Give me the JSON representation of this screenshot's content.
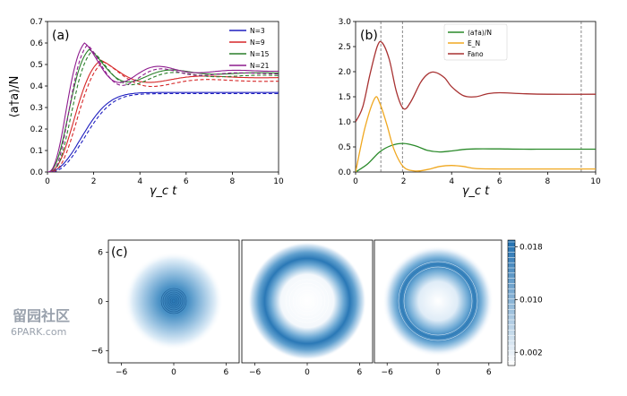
{
  "chart_data": [
    {
      "panel": "(a)",
      "type": "line",
      "xlabel": "γ_c t",
      "ylabel": "⟨a†a⟩/N",
      "xlim": [
        0,
        10
      ],
      "ylim": [
        0,
        0.7
      ],
      "xticks": [
        "0",
        "2",
        "4",
        "6",
        "8",
        "10"
      ],
      "yticks": [
        "0.0",
        "0.1",
        "0.2",
        "0.3",
        "0.4",
        "0.5",
        "0.6",
        "0.7"
      ],
      "legend_position": "top-right",
      "series": [
        {
          "name": "N=3",
          "color": "#1f1fbf",
          "peak_t": 4.2,
          "peak_v": 0.37,
          "final": 0.37,
          "dashed_final": 0.37
        },
        {
          "name": "N=9",
          "color": "#d62728",
          "peak_t": 2.3,
          "peak_v": 0.52,
          "final": 0.44,
          "dashed_final": 0.43
        },
        {
          "name": "N=15",
          "color": "#2a7f2a",
          "peak_t": 1.8,
          "peak_v": 0.57,
          "final": 0.46,
          "dashed_final": 0.455
        },
        {
          "name": "N=21",
          "color": "#8e1c8e",
          "peak_t": 1.6,
          "peak_v": 0.6,
          "final": 0.47,
          "dashed_final": 0.465
        }
      ]
    },
    {
      "panel": "(b)",
      "type": "line",
      "xlabel": "γ_c t",
      "xlim": [
        0,
        10
      ],
      "ylim": [
        0,
        3.0
      ],
      "xticks": [
        "0",
        "2",
        "4",
        "6",
        "8",
        "10"
      ],
      "yticks": [
        "0.0",
        "0.5",
        "1.0",
        "1.5",
        "2.0",
        "2.5",
        "3.0"
      ],
      "legend_position": "top-right",
      "vlines": [
        1.05,
        1.95,
        9.4
      ],
      "series": [
        {
          "name": "⟨a†a⟩/N",
          "color": "#2a8a2a",
          "x": [
            0,
            0.5,
            1.0,
            1.5,
            2.0,
            2.5,
            3.0,
            3.5,
            4.0,
            4.5,
            5,
            6,
            7,
            8,
            10
          ],
          "y": [
            0,
            0.16,
            0.4,
            0.53,
            0.57,
            0.52,
            0.43,
            0.4,
            0.42,
            0.45,
            0.46,
            0.46,
            0.455,
            0.455,
            0.455
          ]
        },
        {
          "name": "E_N",
          "color": "#f0a820",
          "x": [
            0,
            0.4,
            0.8,
            1.0,
            1.3,
            1.6,
            2.0,
            2.5,
            3.0,
            3.5,
            4.0,
            4.5,
            5,
            6,
            7,
            8,
            10
          ],
          "y": [
            0,
            0.9,
            1.47,
            1.38,
            0.95,
            0.45,
            0.1,
            0.02,
            0.05,
            0.11,
            0.13,
            0.11,
            0.07,
            0.06,
            0.06,
            0.06,
            0.06
          ]
        },
        {
          "name": "Fano",
          "color": "#a83232",
          "x": [
            0,
            0.3,
            0.6,
            0.9,
            1.1,
            1.4,
            1.7,
            2.0,
            2.3,
            2.7,
            3.0,
            3.3,
            3.7,
            4.0,
            4.5,
            5,
            5.5,
            6,
            7,
            8,
            10
          ],
          "y": [
            1.0,
            1.3,
            1.95,
            2.5,
            2.58,
            2.25,
            1.6,
            1.26,
            1.4,
            1.78,
            1.95,
            1.99,
            1.88,
            1.7,
            1.52,
            1.5,
            1.56,
            1.58,
            1.56,
            1.55,
            1.55
          ]
        }
      ]
    },
    {
      "panel": "(c)",
      "type": "heatmap",
      "xlim": [
        -7.5,
        7.5
      ],
      "ylim": [
        -7.5,
        7.5
      ],
      "xticks": [
        "−6",
        "0",
        "6"
      ],
      "yticks": [
        "6",
        "0",
        "−6"
      ],
      "colorbar_ticks": [
        "0.018",
        "0.010",
        "0.002"
      ],
      "colorbar_range": [
        0.0,
        0.019
      ],
      "colormap": [
        "#ffffff",
        "#1f6fb0"
      ],
      "subplots": [
        {
          "profile": "centered-disk",
          "peak_radius": 0,
          "width": 2.6,
          "outer": 5.6
        },
        {
          "profile": "ring",
          "peak_radius": 3.9,
          "width": 1.0
        },
        {
          "profile": "ring",
          "peak_radius": 3.2,
          "width": 1.1
        }
      ]
    }
  ],
  "watermark": {
    "line1": "留园社区",
    "line2": "6PARK.com"
  }
}
